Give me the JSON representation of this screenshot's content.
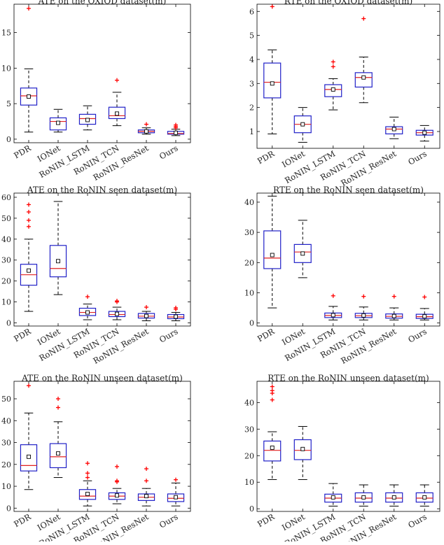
{
  "chart_data": [
    {
      "type": "box",
      "title": "ATE on the OXIOD dataset(m)",
      "categories": [
        "PDR",
        "IONet",
        "RoNIN_LSTM",
        "RoNIN_TCN",
        "RoNIN_ResNet",
        "Ours"
      ],
      "ylim": [
        -0.5,
        19
      ],
      "yticks": [
        0,
        5,
        10,
        15
      ],
      "boxes": [
        {
          "min": 1.0,
          "q1": 4.8,
          "median": 6.1,
          "q3": 7.2,
          "max": 9.9,
          "mean": 6.0,
          "outliers": [
            18.4
          ]
        },
        {
          "min": 1.0,
          "q1": 1.3,
          "median": 2.5,
          "q3": 3.0,
          "max": 4.2,
          "mean": 2.3,
          "outliers": []
        },
        {
          "min": 1.3,
          "q1": 2.1,
          "median": 2.9,
          "q3": 3.5,
          "max": 4.7,
          "mean": 2.7,
          "outliers": []
        },
        {
          "min": 1.9,
          "q1": 2.9,
          "median": 3.3,
          "q3": 4.5,
          "max": 6.6,
          "mean": 3.6,
          "outliers": [
            8.3
          ]
        },
        {
          "min": 0.7,
          "q1": 0.9,
          "median": 1.1,
          "q3": 1.3,
          "max": 1.6,
          "mean": 1.1,
          "outliers": [
            2.1
          ]
        },
        {
          "min": 0.5,
          "q1": 0.7,
          "median": 0.8,
          "q3": 1.1,
          "max": 1.4,
          "mean": 0.9,
          "outliers": [
            1.6,
            1.8,
            2.0
          ]
        }
      ]
    },
    {
      "type": "box",
      "title": "RTE on the OXIOD dataset(m)",
      "categories": [
        "PDR",
        "IONet",
        "RoNIN_LSTM",
        "RoNIN_TCN",
        "RoNIN_ResNet",
        "Ours"
      ],
      "ylim": [
        0.3,
        6.3
      ],
      "yticks": [
        1,
        2,
        3,
        4,
        5,
        6
      ],
      "boxes": [
        {
          "min": 0.9,
          "q1": 2.4,
          "median": 3.05,
          "q3": 3.85,
          "max": 4.4,
          "mean": 3.0,
          "outliers": [
            6.2
          ]
        },
        {
          "min": 0.55,
          "q1": 0.95,
          "median": 1.3,
          "q3": 1.65,
          "max": 2.0,
          "mean": 1.3,
          "outliers": []
        },
        {
          "min": 1.9,
          "q1": 2.45,
          "median": 2.75,
          "q3": 2.95,
          "max": 3.2,
          "mean": 2.75,
          "outliers": [
            3.7,
            3.9
          ]
        },
        {
          "min": 2.2,
          "q1": 2.85,
          "median": 3.25,
          "q3": 3.45,
          "max": 4.1,
          "mean": 3.25,
          "outliers": [
            5.7
          ]
        },
        {
          "min": 0.7,
          "q1": 0.9,
          "median": 1.1,
          "q3": 1.2,
          "max": 1.6,
          "mean": 1.1,
          "outliers": []
        },
        {
          "min": 0.6,
          "q1": 0.85,
          "median": 0.95,
          "q3": 1.05,
          "max": 1.25,
          "mean": 0.95,
          "outliers": []
        }
      ]
    },
    {
      "type": "box",
      "title": "ATE on the RoNIN seen dataset(m)",
      "categories": [
        "PDR",
        "IONet",
        "RoNIN_LSTM",
        "RoNIN_TCN",
        "RoNIN_ResNet",
        "Ours"
      ],
      "ylim": [
        -1.5,
        62
      ],
      "yticks": [
        0,
        10,
        20,
        30,
        40,
        50,
        60
      ],
      "boxes": [
        {
          "min": 5.5,
          "q1": 18.0,
          "median": 23.0,
          "q3": 28.0,
          "max": 40.0,
          "mean": 25.0,
          "outliers": [
            46.0,
            49.0,
            53.0,
            56.5
          ]
        },
        {
          "min": 13.5,
          "q1": 22.0,
          "median": 26.0,
          "q3": 37.0,
          "max": 58.0,
          "mean": 29.5,
          "outliers": []
        },
        {
          "min": 1.5,
          "q1": 3.5,
          "median": 5.0,
          "q3": 7.0,
          "max": 9.0,
          "mean": 5.0,
          "outliers": [
            12.5
          ]
        },
        {
          "min": 1.5,
          "q1": 3.0,
          "median": 4.0,
          "q3": 5.5,
          "max": 7.5,
          "mean": 4.3,
          "outliers": [
            10.0,
            10.5
          ]
        },
        {
          "min": 1.0,
          "q1": 2.3,
          "median": 3.2,
          "q3": 4.5,
          "max": 5.5,
          "mean": 3.3,
          "outliers": [
            7.5
          ]
        },
        {
          "min": 1.0,
          "q1": 2.0,
          "median": 2.8,
          "q3": 4.0,
          "max": 5.0,
          "mean": 3.0,
          "outliers": [
            6.5,
            7.2
          ]
        }
      ]
    },
    {
      "type": "box",
      "title": "RTE on the RoNIN seen dataset(m)",
      "categories": [
        "PDR",
        "IONet",
        "RoNIN_LSTM",
        "RoNIN_TCN",
        "RoNIN_ResNet",
        "Ours"
      ],
      "ylim": [
        -1,
        43
      ],
      "yticks": [
        0,
        10,
        20,
        30,
        40
      ],
      "boxes": [
        {
          "min": 5.0,
          "q1": 18.0,
          "median": 21.5,
          "q3": 30.5,
          "max": 42.0,
          "mean": 22.5,
          "outliers": []
        },
        {
          "min": 15.0,
          "q1": 20.0,
          "median": 23.5,
          "q3": 26.0,
          "max": 34.0,
          "mean": 23.0,
          "outliers": []
        },
        {
          "min": 1.0,
          "q1": 1.8,
          "median": 2.5,
          "q3": 3.3,
          "max": 5.5,
          "mean": 2.6,
          "outliers": [
            9.0
          ]
        },
        {
          "min": 1.0,
          "q1": 1.8,
          "median": 2.4,
          "q3": 3.2,
          "max": 5.3,
          "mean": 2.5,
          "outliers": [
            8.8
          ]
        },
        {
          "min": 1.0,
          "q1": 1.6,
          "median": 2.2,
          "q3": 3.0,
          "max": 5.0,
          "mean": 2.3,
          "outliers": [
            8.8
          ]
        },
        {
          "min": 1.0,
          "q1": 1.5,
          "median": 2.1,
          "q3": 2.9,
          "max": 4.8,
          "mean": 2.2,
          "outliers": [
            8.6
          ]
        }
      ]
    },
    {
      "type": "box",
      "title": "ATE on the RoNIN unseen dataset(m)",
      "categories": [
        "PDR",
        "IONet",
        "RoNIN_LSTM",
        "RoNIN_TCN",
        "RoNIN_ResNet",
        "Ours"
      ],
      "ylim": [
        -1.5,
        58
      ],
      "yticks": [
        0,
        10,
        20,
        30,
        40,
        50
      ],
      "boxes": [
        {
          "min": 8.5,
          "q1": 17.0,
          "median": 19.5,
          "q3": 29.0,
          "max": 43.5,
          "mean": 23.5,
          "outliers": [
            56.0
          ]
        },
        {
          "min": 14.0,
          "q1": 18.5,
          "median": 23.5,
          "q3": 29.5,
          "max": 39.5,
          "mean": 25.0,
          "outliers": [
            46.0,
            50.0
          ]
        },
        {
          "min": 1.0,
          "q1": 4.0,
          "median": 5.5,
          "q3": 8.5,
          "max": 12.5,
          "mean": 6.5,
          "outliers": [
            14.0,
            16.0,
            20.5
          ]
        },
        {
          "min": 2.0,
          "q1": 4.0,
          "median": 5.5,
          "q3": 7.0,
          "max": 9.0,
          "mean": 5.8,
          "outliers": [
            12.0,
            12.5,
            19.0
          ]
        },
        {
          "min": 1.0,
          "q1": 3.5,
          "median": 5.0,
          "q3": 6.5,
          "max": 9.0,
          "mean": 5.5,
          "outliers": [
            12.5,
            18.0
          ]
        },
        {
          "min": 1.0,
          "q1": 3.0,
          "median": 4.5,
          "q3": 6.5,
          "max": 11.5,
          "mean": 5.0,
          "outliers": [
            13.0
          ]
        }
      ]
    },
    {
      "type": "box",
      "title": "RTE on the RoNIN unseen dataset(m)",
      "categories": [
        "PDR",
        "IONet",
        "RoNIN_LSTM",
        "RoNIN_TCN",
        "RoNIN_ResNet",
        "Ours"
      ],
      "ylim": [
        -1,
        48
      ],
      "yticks": [
        0,
        10,
        20,
        30,
        40
      ],
      "boxes": [
        {
          "min": 11.0,
          "q1": 18.0,
          "median": 22.0,
          "q3": 25.5,
          "max": 29.0,
          "mean": 23.0,
          "outliers": [
            41.0,
            43.5,
            44.5,
            46.0
          ]
        },
        {
          "min": 11.0,
          "q1": 18.5,
          "median": 22.0,
          "q3": 26.0,
          "max": 31.0,
          "mean": 22.5,
          "outliers": []
        },
        {
          "min": 1.0,
          "q1": 2.5,
          "median": 4.0,
          "q3": 5.5,
          "max": 9.5,
          "mean": 4.3,
          "outliers": []
        },
        {
          "min": 1.0,
          "q1": 2.5,
          "median": 4.0,
          "q3": 6.0,
          "max": 9.0,
          "mean": 4.3,
          "outliers": []
        },
        {
          "min": 1.0,
          "q1": 2.5,
          "median": 4.0,
          "q3": 6.0,
          "max": 9.0,
          "mean": 4.3,
          "outliers": []
        },
        {
          "min": 1.0,
          "q1": 2.5,
          "median": 4.0,
          "q3": 6.0,
          "max": 9.0,
          "mean": 4.3,
          "outliers": []
        }
      ]
    }
  ],
  "colors": {
    "box": "#2020c8",
    "median": "#e02020",
    "whisker": "#000000",
    "outlier": "#ff0000",
    "mean": "#000000",
    "axis": "#000000"
  }
}
